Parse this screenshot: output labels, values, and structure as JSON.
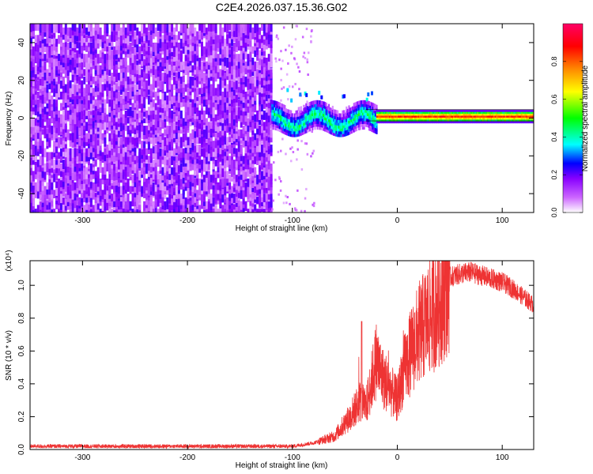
{
  "title": "C2E4.2026.037.15.36.G02",
  "chart_data": [
    {
      "type": "heatmap",
      "title": "C2E4.2026.037.15.36.G02",
      "xlabel": "Height of straight line (km)",
      "ylabel": "Frequency (Hz)",
      "xlim": [
        -350,
        130
      ],
      "ylim": [
        -50,
        50
      ],
      "x_ticks": [
        -300,
        -200,
        -100,
        0,
        100
      ],
      "y_ticks": [
        -40,
        -20,
        0,
        20,
        40
      ],
      "colorbar": {
        "label": "Normalized spectral amplitude",
        "range": [
          0,
          1
        ],
        "ticks": [
          "0.0",
          "0.2",
          "0.4",
          "0.6",
          "0.8"
        ],
        "colormap": [
          "#ffffff",
          "#cc66ff",
          "#8800ff",
          "#0000ff",
          "#00ffff",
          "#00ff00",
          "#ffff00",
          "#ff8800",
          "#ff0000",
          "#ff0066"
        ]
      },
      "regions": [
        {
          "x_range": [
            -350,
            -120
          ],
          "y_range": [
            -50,
            50
          ],
          "description_level": 0.2
        },
        {
          "x_range": [
            -120,
            -20
          ],
          "center_y": 2,
          "spread_y": 6,
          "level": 0.45
        },
        {
          "x_range": [
            -20,
            130
          ],
          "center_y": 1.5,
          "spread_y": 1.5,
          "level": 0.8
        }
      ]
    },
    {
      "type": "line",
      "xlabel": "Height of straight line (km)",
      "ylabel": "SNR (10 * v/v)",
      "y_exponent": "(x10⁴)",
      "xlim": [
        -350,
        130
      ],
      "ylim": [
        0,
        1.15
      ],
      "x_ticks": [
        -300,
        -200,
        -100,
        0,
        100
      ],
      "y_ticks": [
        "0.0",
        "0.2",
        "0.4",
        "0.6",
        "0.8",
        "1.0"
      ],
      "series_color": "#ee3333",
      "envelope": {
        "x": [
          -350,
          -200,
          -100,
          -80,
          -60,
          -45,
          -35,
          -30,
          -25,
          -20,
          -15,
          -10,
          -5,
          0,
          5,
          10,
          20,
          30,
          40,
          50,
          60,
          70,
          80,
          90,
          100,
          110,
          120,
          130
        ],
        "y": [
          0.02,
          0.02,
          0.02,
          0.04,
          0.08,
          0.2,
          0.3,
          0.25,
          0.4,
          0.55,
          0.45,
          0.4,
          0.35,
          0.3,
          0.45,
          0.55,
          0.7,
          0.8,
          0.9,
          1.05,
          1.07,
          1.08,
          1.06,
          1.04,
          1.02,
          0.98,
          0.93,
          0.88
        ]
      }
    }
  ]
}
